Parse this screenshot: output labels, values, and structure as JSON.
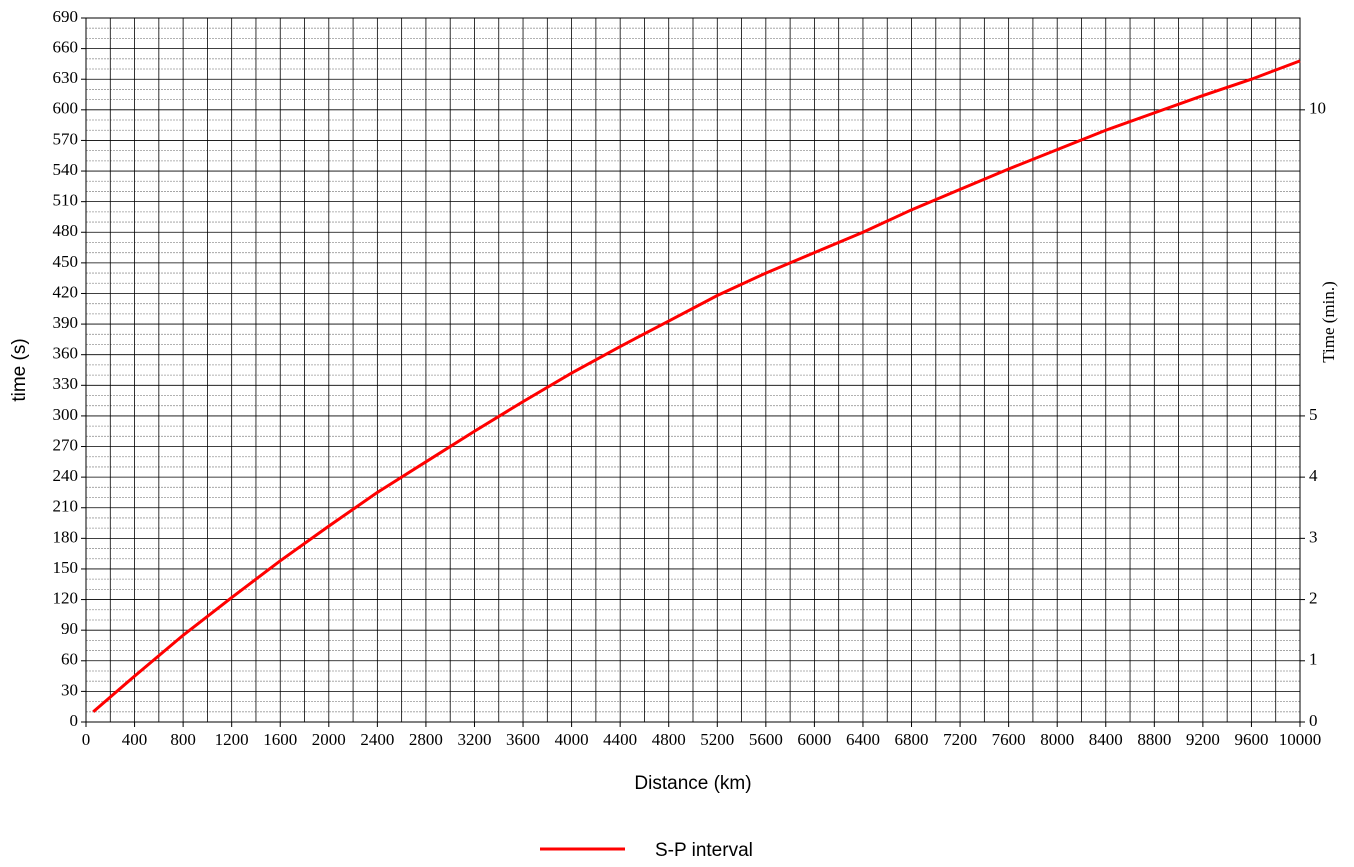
{
  "chart_data": {
    "type": "line",
    "x_label": "Distance (km)",
    "y_label": "time (s)",
    "y2_label": "Time (min.)",
    "x": [
      60,
      400,
      800,
      1200,
      1600,
      2000,
      2400,
      2800,
      3200,
      3600,
      4000,
      4400,
      4800,
      5200,
      5600,
      6000,
      6400,
      6800,
      7200,
      7600,
      8000,
      8400,
      8800,
      9200,
      9600,
      10000
    ],
    "series": [
      {
        "name": "S-P interval",
        "color": "#ff0000",
        "values": [
          10,
          45,
          85,
          122,
          158,
          192,
          225,
          255,
          285,
          314,
          342,
          368,
          393,
          418,
          440,
          460,
          480,
          502,
          522,
          542,
          561,
          580,
          597,
          614,
          630,
          648
        ]
      }
    ],
    "xlim": [
      0,
      10000
    ],
    "xticks": [
      0,
      400,
      800,
      1200,
      1600,
      2000,
      2400,
      2800,
      3200,
      3600,
      4000,
      4400,
      4800,
      5200,
      5600,
      6000,
      6400,
      6800,
      7200,
      7600,
      8000,
      8400,
      8800,
      9200,
      9600,
      10000
    ],
    "ylim": [
      0,
      690
    ],
    "yticks": [
      0,
      30,
      60,
      90,
      120,
      150,
      180,
      210,
      240,
      270,
      300,
      330,
      360,
      390,
      420,
      450,
      480,
      510,
      540,
      570,
      600,
      630,
      660,
      690
    ],
    "y2lim": [
      0,
      11.5
    ],
    "y2ticks": [
      0,
      1,
      2,
      3,
      4,
      5,
      10
    ],
    "grid": true,
    "legend": "bottom"
  }
}
